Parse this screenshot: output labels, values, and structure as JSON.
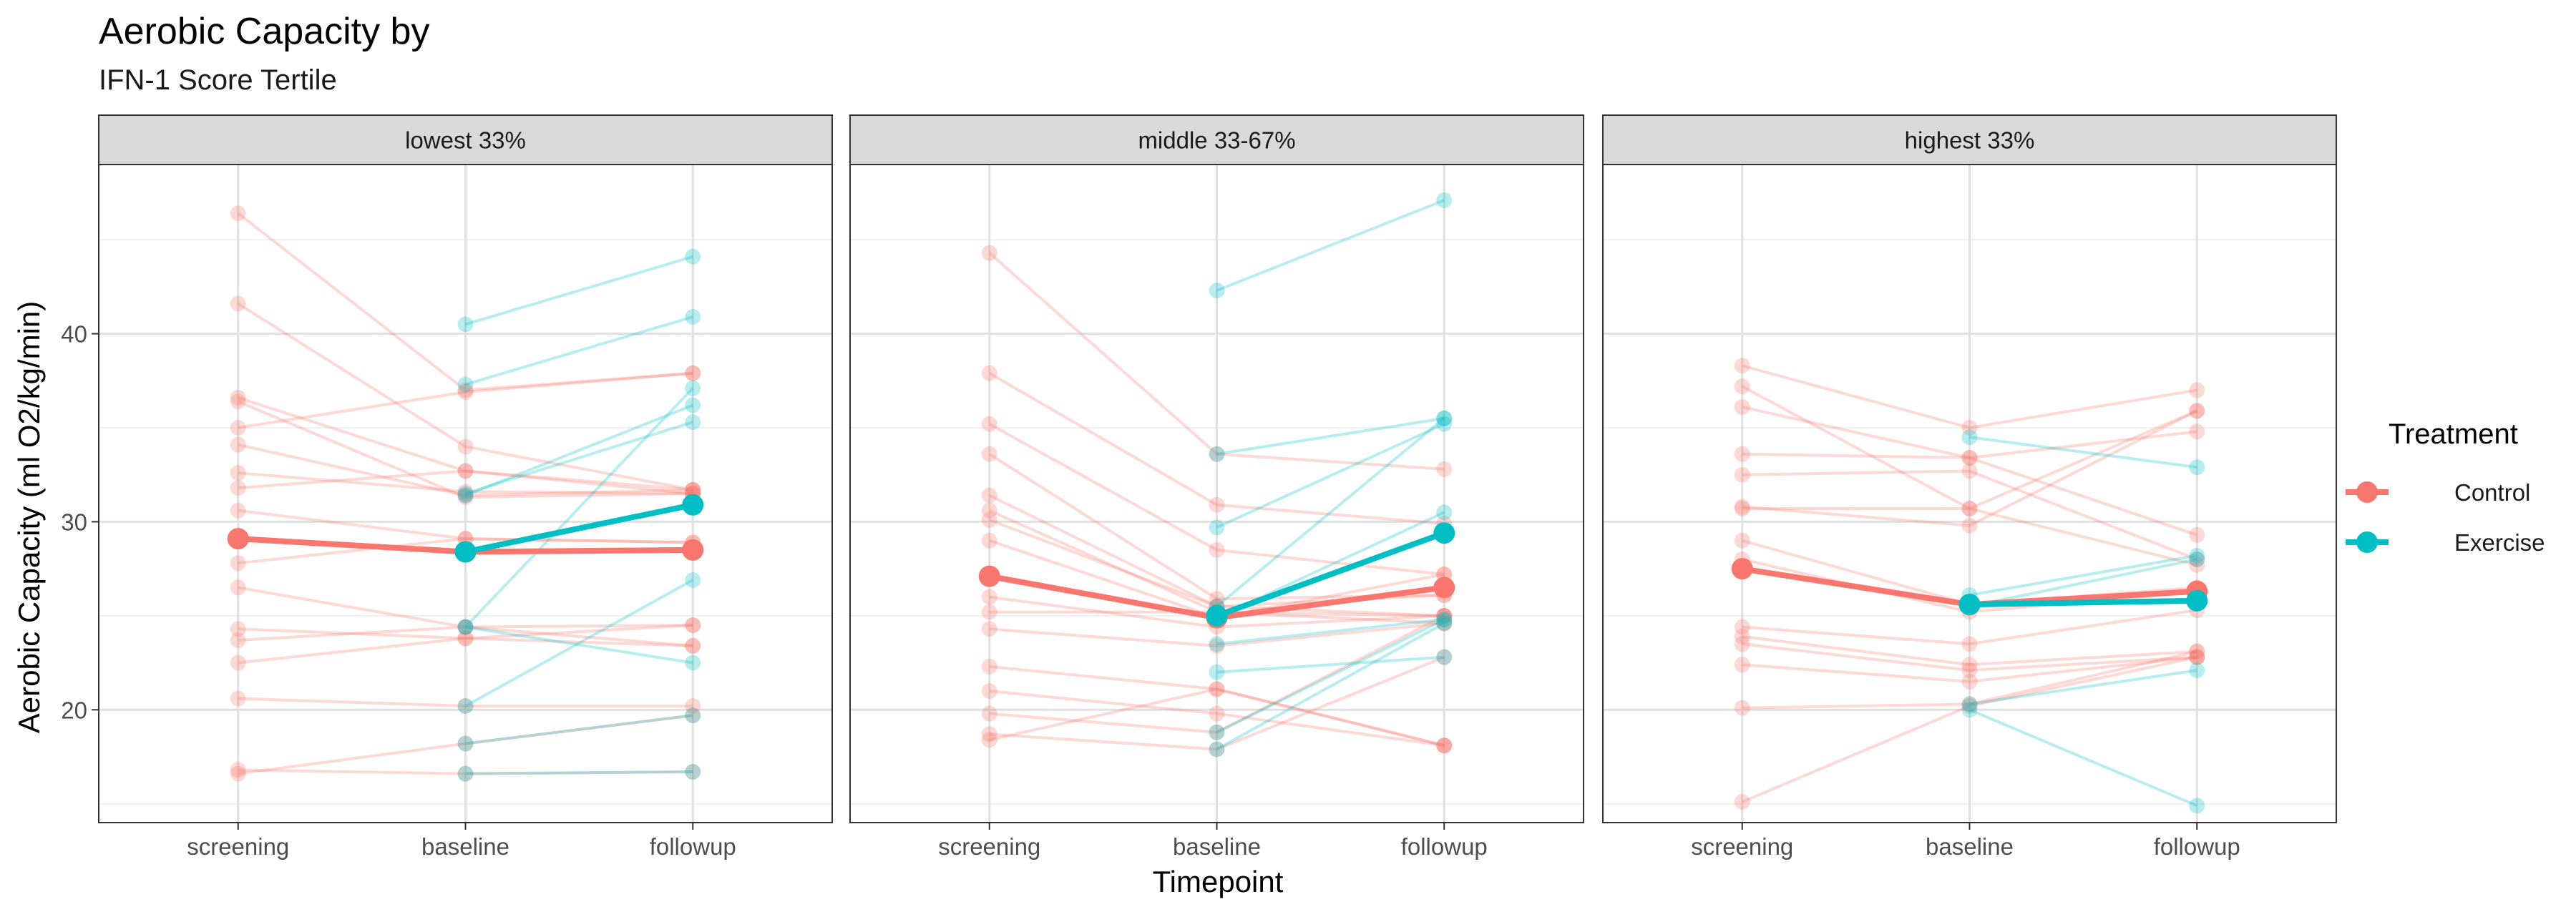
{
  "chart_data": {
    "type": "line",
    "title": "Aerobic Capacity by",
    "subtitle": "IFN-1 Score Tertile",
    "xlabel": "Timepoint",
    "ylabel": "Aerobic Capacity (ml O2/kg/min)",
    "categories": [
      "screening",
      "baseline",
      "followup"
    ],
    "ylim": [
      14,
      49
    ],
    "yticks": [
      20,
      30,
      40
    ],
    "grid": true,
    "legend": {
      "title": "Treatment",
      "position": "right",
      "items": [
        {
          "name": "Control",
          "color": "#F8766D"
        },
        {
          "name": "Exercise",
          "color": "#00BFC4"
        }
      ]
    },
    "panels": [
      {
        "label": "lowest 33%",
        "means": [
          {
            "name": "Control",
            "values": [
              29.1,
              28.4,
              28.5
            ]
          },
          {
            "name": "Exercise",
            "values": [
              null,
              28.4,
              30.9
            ]
          }
        ],
        "subjects": [
          {
            "group": "Control",
            "values": [
              46.4,
              37.0,
              37.9
            ]
          },
          {
            "group": "Control",
            "values": [
              41.6,
              34.0,
              31.7
            ]
          },
          {
            "group": "Control",
            "values": [
              36.6,
              32.7,
              31.5
            ]
          },
          {
            "group": "Control",
            "values": [
              36.4,
              31.3,
              31.5
            ]
          },
          {
            "group": "Control",
            "values": [
              35.0,
              36.9,
              37.9
            ]
          },
          {
            "group": "Control",
            "values": [
              34.1,
              31.4,
              31.7
            ]
          },
          {
            "group": "Control",
            "values": [
              32.6,
              31.6,
              31.5
            ]
          },
          {
            "group": "Control",
            "values": [
              31.8,
              32.7,
              31.7
            ]
          },
          {
            "group": "Control",
            "values": [
              30.6,
              29.1,
              28.9
            ]
          },
          {
            "group": "Control",
            "values": [
              27.8,
              29.1,
              28.9
            ]
          },
          {
            "group": "Control",
            "values": [
              26.5,
              24.4,
              24.5
            ]
          },
          {
            "group": "Control",
            "values": [
              24.3,
              23.8,
              24.5
            ]
          },
          {
            "group": "Control",
            "values": [
              23.7,
              24.4,
              23.4
            ]
          },
          {
            "group": "Control",
            "values": [
              22.5,
              23.8,
              23.4
            ]
          },
          {
            "group": "Control",
            "values": [
              20.6,
              20.2,
              20.2
            ]
          },
          {
            "group": "Control",
            "values": [
              16.8,
              16.6,
              16.7
            ]
          },
          {
            "group": "Control",
            "values": [
              16.6,
              18.2,
              19.7
            ]
          },
          {
            "group": "Exercise",
            "values": [
              null,
              40.5,
              44.1
            ]
          },
          {
            "group": "Exercise",
            "values": [
              null,
              37.3,
              40.9
            ]
          },
          {
            "group": "Exercise",
            "values": [
              null,
              31.4,
              36.2
            ]
          },
          {
            "group": "Exercise",
            "values": [
              null,
              31.5,
              35.3
            ]
          },
          {
            "group": "Exercise",
            "values": [
              null,
              24.4,
              37.1
            ]
          },
          {
            "group": "Exercise",
            "values": [
              null,
              24.4,
              22.5
            ]
          },
          {
            "group": "Exercise",
            "values": [
              null,
              20.2,
              26.9
            ]
          },
          {
            "group": "Exercise",
            "values": [
              null,
              18.2,
              19.7
            ]
          },
          {
            "group": "Exercise",
            "values": [
              null,
              16.6,
              16.7
            ]
          }
        ]
      },
      {
        "label": "middle 33-67%",
        "means": [
          {
            "name": "Control",
            "values": [
              27.1,
              24.9,
              26.5
            ]
          },
          {
            "name": "Exercise",
            "values": [
              null,
              25.0,
              29.4
            ]
          }
        ],
        "subjects": [
          {
            "group": "Control",
            "values": [
              44.3,
              33.6,
              32.8
            ]
          },
          {
            "group": "Control",
            "values": [
              37.9,
              30.9,
              29.9
            ]
          },
          {
            "group": "Control",
            "values": [
              35.2,
              28.5,
              27.2
            ]
          },
          {
            "group": "Control",
            "values": [
              33.6,
              25.9,
              26.1
            ]
          },
          {
            "group": "Control",
            "values": [
              31.4,
              25.5,
              26.1
            ]
          },
          {
            "group": "Control",
            "values": [
              30.6,
              25.2,
              25.0
            ]
          },
          {
            "group": "Control",
            "values": [
              30.1,
              25.5,
              25.0
            ]
          },
          {
            "group": "Control",
            "values": [
              29.0,
              24.9,
              27.2
            ]
          },
          {
            "group": "Control",
            "values": [
              26.0,
              24.4,
              25.0
            ]
          },
          {
            "group": "Control",
            "values": [
              25.2,
              25.2,
              24.6
            ]
          },
          {
            "group": "Control",
            "values": [
              24.3,
              23.4,
              24.6
            ]
          },
          {
            "group": "Control",
            "values": [
              22.3,
              21.1,
              18.1
            ]
          },
          {
            "group": "Control",
            "values": [
              21.0,
              19.8,
              18.1
            ]
          },
          {
            "group": "Control",
            "values": [
              19.8,
              18.8,
              25.0
            ]
          },
          {
            "group": "Control",
            "values": [
              18.7,
              17.9,
              22.8
            ]
          },
          {
            "group": "Control",
            "values": [
              18.4,
              21.1,
              18.1
            ]
          },
          {
            "group": "Exercise",
            "values": [
              null,
              42.3,
              47.1
            ]
          },
          {
            "group": "Exercise",
            "values": [
              null,
              33.6,
              35.5
            ]
          },
          {
            "group": "Exercise",
            "values": [
              null,
              29.7,
              35.2
            ]
          },
          {
            "group": "Exercise",
            "values": [
              null,
              25.5,
              35.5
            ]
          },
          {
            "group": "Exercise",
            "values": [
              null,
              24.9,
              30.5
            ]
          },
          {
            "group": "Exercise",
            "values": [
              null,
              23.5,
              24.8
            ]
          },
          {
            "group": "Exercise",
            "values": [
              null,
              22.0,
              22.8
            ]
          },
          {
            "group": "Exercise",
            "values": [
              null,
              18.8,
              24.8
            ]
          },
          {
            "group": "Exercise",
            "values": [
              null,
              17.9,
              24.6
            ]
          }
        ]
      },
      {
        "label": "highest 33%",
        "means": [
          {
            "name": "Control",
            "values": [
              27.5,
              25.6,
              26.3
            ]
          },
          {
            "name": "Exercise",
            "values": [
              null,
              25.6,
              25.8
            ]
          }
        ],
        "subjects": [
          {
            "group": "Control",
            "values": [
              38.3,
              35.0,
              37.0
            ]
          },
          {
            "group": "Control",
            "values": [
              37.2,
              30.7,
              35.9
            ]
          },
          {
            "group": "Control",
            "values": [
              36.1,
              33.4,
              34.8
            ]
          },
          {
            "group": "Control",
            "values": [
              33.6,
              33.4,
              29.3
            ]
          },
          {
            "group": "Control",
            "values": [
              32.5,
              32.7,
              28.0
            ]
          },
          {
            "group": "Control",
            "values": [
              30.8,
              29.8,
              35.9
            ]
          },
          {
            "group": "Control",
            "values": [
              30.7,
              30.7,
              27.7
            ]
          },
          {
            "group": "Control",
            "values": [
              29.0,
              25.6,
              26.5
            ]
          },
          {
            "group": "Control",
            "values": [
              28.0,
              25.2,
              26.3
            ]
          },
          {
            "group": "Control",
            "values": [
              24.4,
              23.5,
              25.3
            ]
          },
          {
            "group": "Control",
            "values": [
              23.9,
              22.4,
              23.1
            ]
          },
          {
            "group": "Control",
            "values": [
              23.5,
              22.1,
              22.8
            ]
          },
          {
            "group": "Control",
            "values": [
              22.4,
              21.5,
              22.8
            ]
          },
          {
            "group": "Control",
            "values": [
              20.1,
              20.3,
              23.1
            ]
          },
          {
            "group": "Control",
            "values": [
              15.1,
              20.2,
              22.8
            ]
          },
          {
            "group": "Exercise",
            "values": [
              null,
              34.5,
              32.9
            ]
          },
          {
            "group": "Exercise",
            "values": [
              null,
              26.1,
              28.2
            ]
          },
          {
            "group": "Exercise",
            "values": [
              null,
              25.5,
              28.0
            ]
          },
          {
            "group": "Exercise",
            "values": [
              null,
              20.3,
              22.1
            ]
          },
          {
            "group": "Exercise",
            "values": [
              null,
              20.0,
              14.9
            ]
          }
        ]
      }
    ]
  }
}
